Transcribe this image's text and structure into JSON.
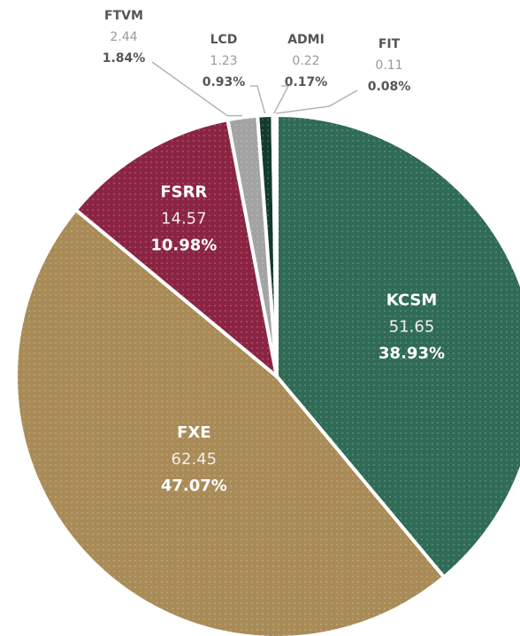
{
  "chart_data": {
    "type": "pie",
    "categories": [
      "KCSM",
      "FXE",
      "FSRR",
      "FTVM",
      "LCD",
      "ADMI",
      "FIT"
    ],
    "values": [
      51.65,
      62.45,
      14.57,
      2.44,
      1.23,
      0.22,
      0.11
    ],
    "percent_labels": [
      "38.93%",
      "47.07%",
      "10.98%",
      "1.84%",
      "0.93%",
      "0.17%",
      "0.08%"
    ],
    "colors": [
      "#2f6b56",
      "#a98b57",
      "#8b2442",
      "#a3a3a3",
      "#123b2d",
      "#1e1e1e",
      "#d6b66c"
    ]
  }
}
